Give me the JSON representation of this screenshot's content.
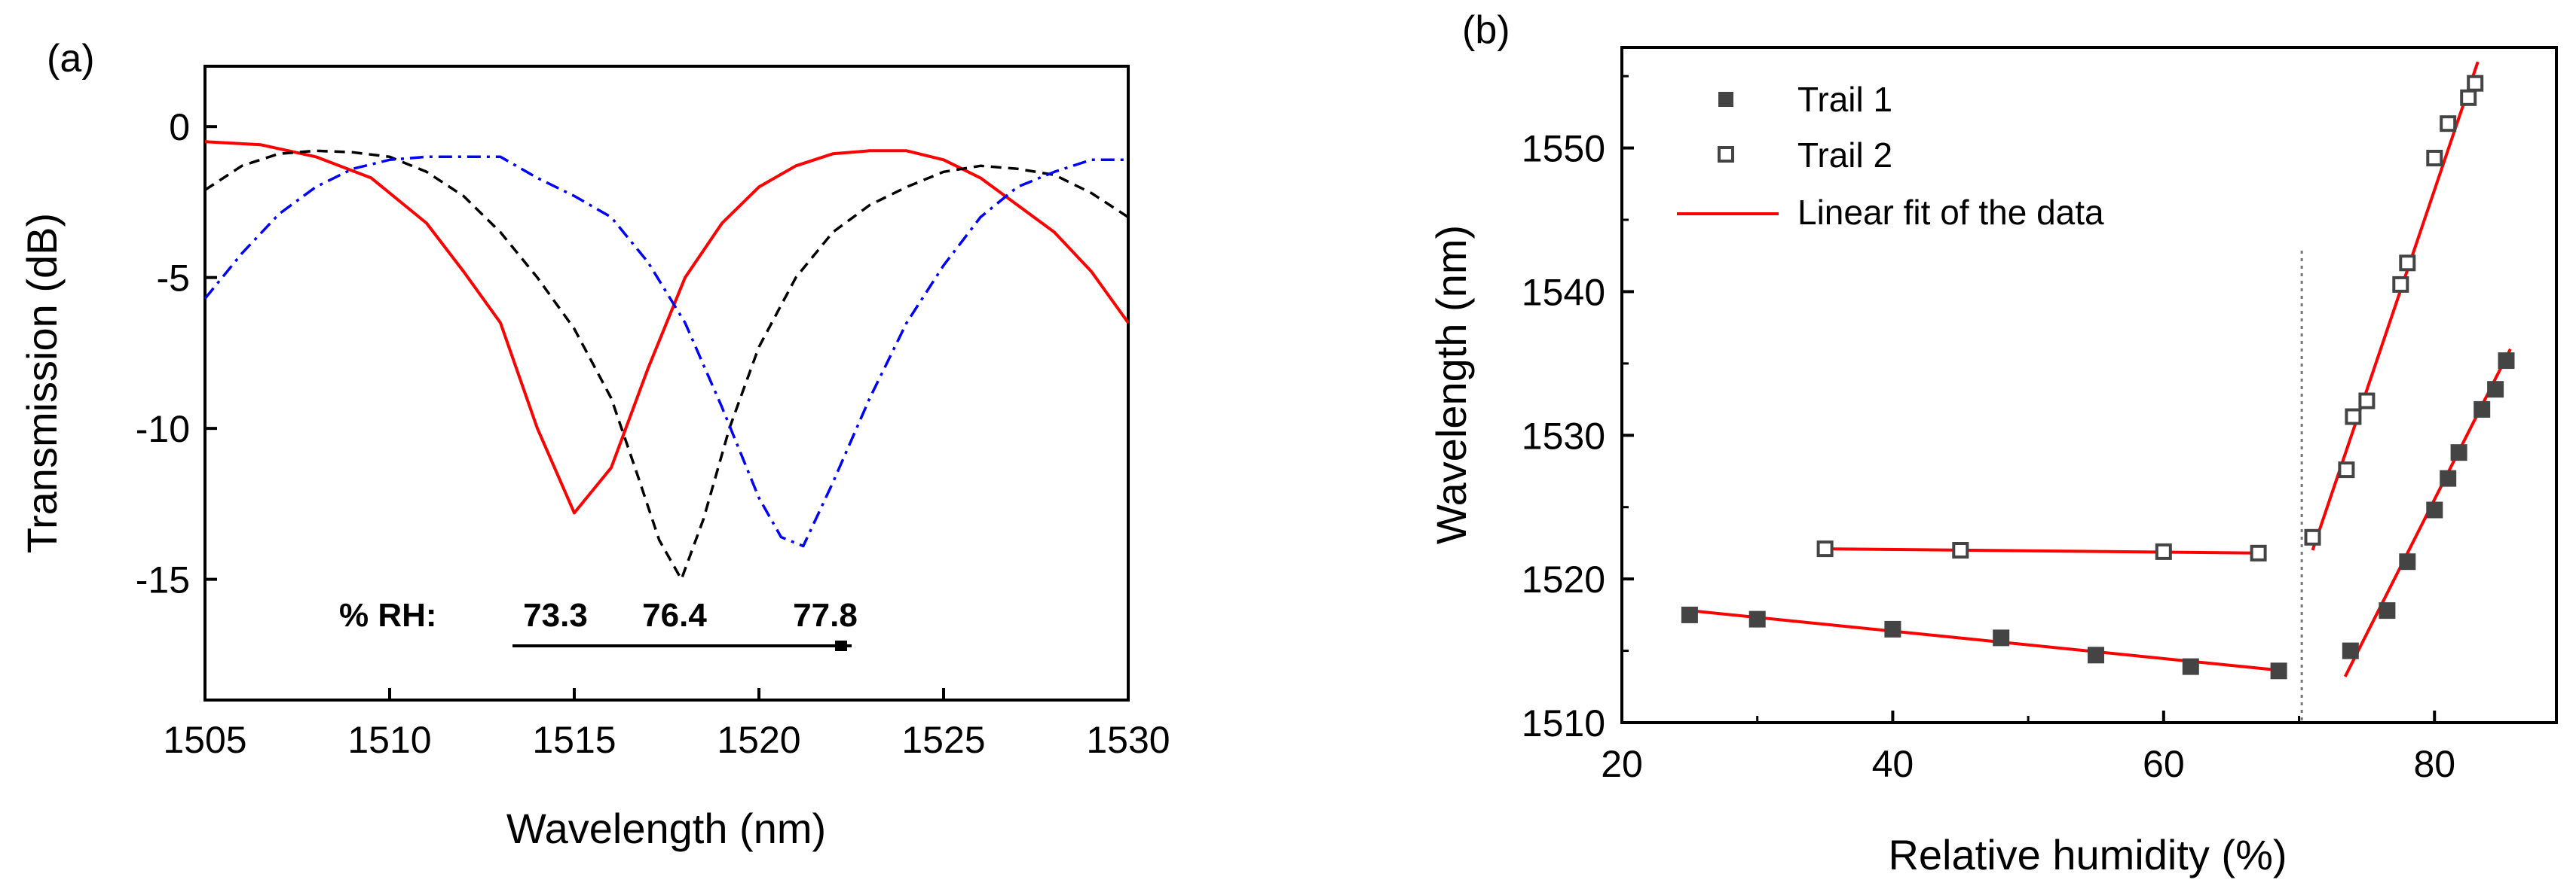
{
  "chart_data": [
    {
      "panel": "(a)",
      "type": "line",
      "xlabel": "Wavelength (nm)",
      "ylabel": "Transmission (dB)",
      "xlim": [
        1505,
        1530
      ],
      "ylim": [
        -19,
        2
      ],
      "xticks": [
        1505,
        1510,
        1515,
        1520,
        1525,
        1530
      ],
      "yticks": [
        0,
        -5,
        -10,
        -15
      ],
      "annotation": {
        "prefix": "% RH:",
        "values": [
          "73.3",
          "76.4",
          "77.8"
        ],
        "arrow": "increasing to the right"
      },
      "series": [
        {
          "name": "73.3",
          "color": "#ff0000",
          "style": "solid",
          "x": [
            1505,
            1506.5,
            1508,
            1509.5,
            1511,
            1512,
            1513,
            1514,
            1515,
            1516,
            1517,
            1518,
            1519,
            1520,
            1521,
            1522,
            1523,
            1524,
            1525,
            1526,
            1527,
            1528,
            1529,
            1530
          ],
          "y": [
            -0.5,
            -0.6,
            -1.0,
            -1.7,
            -3.2,
            -4.8,
            -6.5,
            -10.0,
            -12.8,
            -11.3,
            -8.0,
            -5.0,
            -3.2,
            -2.0,
            -1.3,
            -0.9,
            -0.8,
            -0.8,
            -1.1,
            -1.7,
            -2.6,
            -3.5,
            -4.8,
            -6.5
          ]
        },
        {
          "name": "76.4",
          "color": "#000000",
          "style": "dashed",
          "x": [
            1505,
            1506,
            1507,
            1508,
            1509,
            1510,
            1511,
            1512,
            1513,
            1514,
            1515,
            1516,
            1516.7,
            1517.3,
            1517.9,
            1518.5,
            1519.2,
            1520,
            1521,
            1522,
            1523,
            1524,
            1525,
            1526,
            1527,
            1528,
            1529,
            1530
          ],
          "y": [
            -2.1,
            -1.3,
            -0.9,
            -0.8,
            -0.85,
            -1.0,
            -1.5,
            -2.3,
            -3.5,
            -5.0,
            -6.7,
            -9.0,
            -11.5,
            -13.7,
            -15.0,
            -13.0,
            -10.0,
            -7.3,
            -5.0,
            -3.5,
            -2.6,
            -2.0,
            -1.5,
            -1.3,
            -1.4,
            -1.6,
            -2.2,
            -3.0
          ]
        },
        {
          "name": "77.8",
          "color": "#0000ff",
          "style": "dashdot",
          "x": [
            1505,
            1506,
            1507,
            1508,
            1509,
            1510,
            1511,
            1512,
            1513,
            1514,
            1515,
            1516,
            1517,
            1518,
            1519,
            1520,
            1520.6,
            1521.2,
            1522,
            1523,
            1524,
            1525,
            1526,
            1527,
            1528,
            1529,
            1530
          ],
          "y": [
            -5.7,
            -4.2,
            -2.9,
            -2.0,
            -1.4,
            -1.1,
            -1.0,
            -1.0,
            -1.0,
            -1.7,
            -2.3,
            -3.0,
            -4.5,
            -6.5,
            -9.3,
            -12.3,
            -13.6,
            -13.9,
            -11.8,
            -9.0,
            -6.5,
            -4.6,
            -3.0,
            -2.0,
            -1.5,
            -1.1,
            -1.1
          ]
        }
      ]
    },
    {
      "panel": "(b)",
      "type": "scatter",
      "xlabel": "Relative humidity (%)",
      "ylabel": "Wavelength (nm)",
      "xlim": [
        20,
        89
      ],
      "ylim": [
        1510,
        1557
      ],
      "xticks": [
        20,
        40,
        60,
        80
      ],
      "yticks": [
        1510,
        1520,
        1530,
        1540,
        1550
      ],
      "divider_x": 70.2,
      "legend": [
        "Trail 1",
        "Trail 2",
        "Linear fit of the data"
      ],
      "series": [
        {
          "name": "Trail 1",
          "marker": "filled-square",
          "x": [
            25,
            30,
            40,
            48,
            55,
            62,
            68.5,
            73.8,
            76.5,
            78,
            80,
            81,
            81.8,
            83.5,
            84.5,
            85.3
          ],
          "y": [
            1517.5,
            1517.2,
            1516.5,
            1515.9,
            1514.7,
            1513.9,
            1513.6,
            1515.0,
            1517.8,
            1521.2,
            1524.8,
            1527.0,
            1528.8,
            1531.8,
            1533.2,
            1535.2
          ]
        },
        {
          "name": "Trail 2",
          "marker": "open-square",
          "x": [
            35,
            45,
            60,
            67,
            71,
            73.5,
            74,
            75,
            77.5,
            78,
            80,
            81,
            82.5,
            83
          ],
          "y": [
            1522.1,
            1522.0,
            1521.9,
            1521.8,
            1522.9,
            1527.6,
            1531.3,
            1532.4,
            1540.5,
            1542.0,
            1549.3,
            1551.7,
            1553.5,
            1554.5
          ]
        }
      ],
      "fits": [
        {
          "name": "Trail 1 low-RH fit",
          "x": [
            25,
            69
          ],
          "y": [
            1517.8,
            1513.6
          ]
        },
        {
          "name": "Trail 2 low-RH fit",
          "x": [
            35,
            67
          ],
          "y": [
            1522.1,
            1521.8
          ]
        },
        {
          "name": "Trail 2 high-RH fit",
          "x": [
            71,
            83.2
          ],
          "y": [
            1522.0,
            1556.0
          ]
        },
        {
          "name": "Trail 1 high-RH fit",
          "x": [
            73.4,
            85.6
          ],
          "y": [
            1513.2,
            1536.0
          ]
        }
      ]
    }
  ]
}
